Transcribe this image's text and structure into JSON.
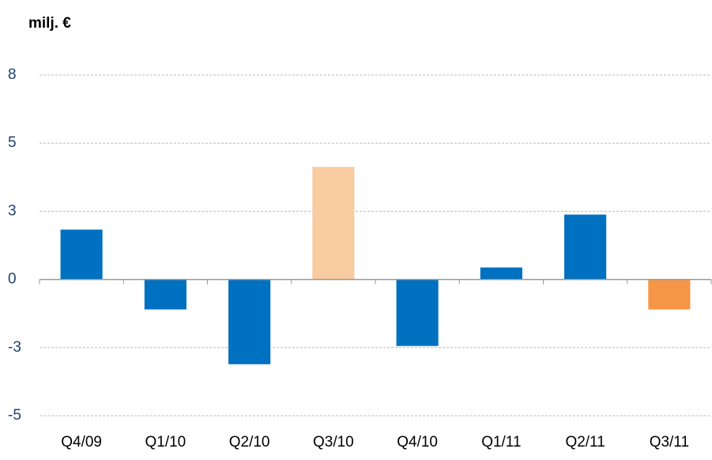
{
  "chart_data": {
    "type": "bar",
    "title": "milj. €",
    "categories": [
      "Q4/09",
      "Q1/10",
      "Q2/10",
      "Q3/10",
      "Q4/10",
      "Q1/11",
      "Q2/11",
      "Q3/11"
    ],
    "values": [
      1.83,
      -1.1,
      -3.11,
      4.13,
      -2.44,
      0.44,
      2.38,
      -1.1
    ],
    "colors": [
      "#0070c0",
      "#0070c0",
      "#0070c0",
      "#f9cba1",
      "#0070c0",
      "#0070c0",
      "#0070c0",
      "#f79646"
    ],
    "ylim": [
      -5,
      7.5
    ],
    "yticks": [
      {
        "value": 7.5,
        "label": "8"
      },
      5,
      {
        "value": 2.5,
        "label": "3"
      },
      0,
      {
        "value": -2.5,
        "label": "-3"
      },
      -5
    ],
    "grid": true
  }
}
